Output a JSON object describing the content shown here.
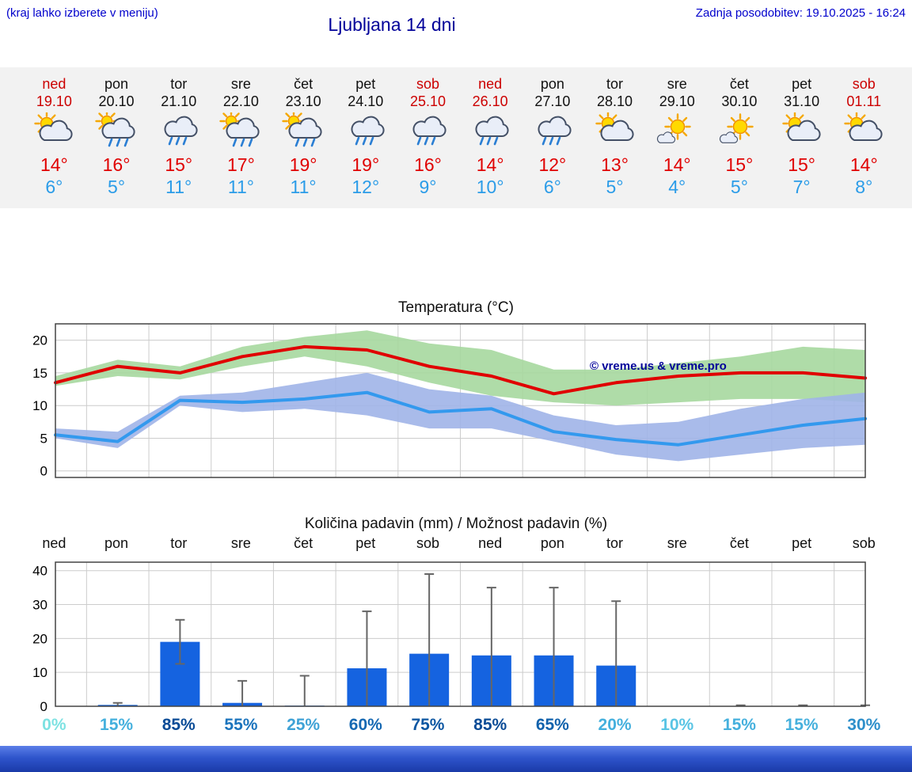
{
  "header": {
    "menu_hint": "(kraj lahko izberete v meniju)",
    "title": "Ljubljana 14 dni",
    "last_update": "Zadnja posodobitev: 19.10.2025 - 16:24"
  },
  "days": [
    {
      "name": "ned",
      "date": "19.10",
      "weekend": true,
      "icon": "partly-cloudy",
      "tmax": "14°",
      "tmin": "6°"
    },
    {
      "name": "pon",
      "date": "20.10",
      "weekend": false,
      "icon": "sun-showers",
      "tmax": "16°",
      "tmin": "5°"
    },
    {
      "name": "tor",
      "date": "21.10",
      "weekend": false,
      "icon": "rain",
      "tmax": "15°",
      "tmin": "11°"
    },
    {
      "name": "sre",
      "date": "22.10",
      "weekend": false,
      "icon": "sun-showers",
      "tmax": "17°",
      "tmin": "11°"
    },
    {
      "name": "čet",
      "date": "23.10",
      "weekend": false,
      "icon": "sun-showers",
      "tmax": "19°",
      "tmin": "11°"
    },
    {
      "name": "pet",
      "date": "24.10",
      "weekend": false,
      "icon": "rain",
      "tmax": "19°",
      "tmin": "12°"
    },
    {
      "name": "sob",
      "date": "25.10",
      "weekend": true,
      "icon": "rain",
      "tmax": "16°",
      "tmin": "9°"
    },
    {
      "name": "ned",
      "date": "26.10",
      "weekend": true,
      "icon": "rain",
      "tmax": "14°",
      "tmin": "10°"
    },
    {
      "name": "pon",
      "date": "27.10",
      "weekend": false,
      "icon": "rain",
      "tmax": "12°",
      "tmin": "6°"
    },
    {
      "name": "tor",
      "date": "28.10",
      "weekend": false,
      "icon": "partly-cloudy",
      "tmax": "13°",
      "tmin": "5°"
    },
    {
      "name": "sre",
      "date": "29.10",
      "weekend": false,
      "icon": "mostly-sunny",
      "tmax": "14°",
      "tmin": "4°"
    },
    {
      "name": "čet",
      "date": "30.10",
      "weekend": false,
      "icon": "mostly-sunny",
      "tmax": "15°",
      "tmin": "5°"
    },
    {
      "name": "pet",
      "date": "31.10",
      "weekend": false,
      "icon": "partly-cloudy",
      "tmax": "15°",
      "tmin": "7°"
    },
    {
      "name": "sob",
      "date": "01.11",
      "weekend": true,
      "icon": "partly-cloudy",
      "tmax": "14°",
      "tmin": "8°"
    }
  ],
  "chart_data": [
    {
      "type": "line",
      "title": "Temperatura (°C)",
      "categories": [
        "ned",
        "pon",
        "tor",
        "sre",
        "čet",
        "pet",
        "sob",
        "ned",
        "pon",
        "tor",
        "sre",
        "čet",
        "pet",
        "sob"
      ],
      "series": [
        {
          "name": "max-temperature",
          "color": "#e00000",
          "values": [
            13.5,
            16,
            15,
            17.5,
            19,
            18.5,
            16,
            14.5,
            11.8,
            13.5,
            14.5,
            15,
            15,
            14.2
          ]
        },
        {
          "name": "min-temperature",
          "color": "#3399ee",
          "values": [
            5.5,
            4.5,
            10.8,
            10.5,
            11,
            12,
            9,
            9.5,
            6,
            4.8,
            4,
            5.5,
            7,
            8
          ]
        }
      ],
      "bands": [
        {
          "name": "max-range",
          "color": "#a6d89e",
          "upper": [
            14.5,
            17,
            16,
            19,
            20.5,
            21.5,
            19.5,
            18.5,
            15.5,
            15.5,
            16.5,
            17.5,
            19,
            18.5
          ],
          "lower": [
            13,
            14.5,
            14,
            16,
            17.5,
            16,
            13.5,
            11.5,
            10.5,
            10,
            10.5,
            11,
            11,
            10.5
          ]
        },
        {
          "name": "min-range",
          "color": "#a0b4e8",
          "upper": [
            6.5,
            6,
            11.5,
            12,
            13.5,
            15,
            12.5,
            11.5,
            8.5,
            7,
            7.5,
            9.5,
            11,
            12
          ],
          "lower": [
            5,
            3.5,
            10,
            9,
            9.5,
            8.5,
            6.5,
            6.5,
            4.5,
            2.5,
            1.5,
            2.5,
            3.5,
            4
          ]
        }
      ],
      "ylim": [
        0,
        22
      ],
      "yticks": [
        0,
        5,
        10,
        15,
        20
      ],
      "grid": true,
      "watermark": "© vreme.us & vreme.pro"
    },
    {
      "type": "bar",
      "title": "Količina padavin (mm) / Možnost padavin (%)",
      "categories": [
        "ned",
        "pon",
        "tor",
        "sre",
        "čet",
        "pet",
        "sob",
        "ned",
        "pon",
        "tor",
        "sre",
        "čet",
        "pet",
        "sob"
      ],
      "values": [
        0,
        0.4,
        19,
        1,
        0.2,
        11.2,
        15.5,
        15,
        15,
        12,
        0,
        0.1,
        0.1,
        0.1
      ],
      "whisker_low": [
        0,
        0,
        12.5,
        0,
        0,
        0,
        0,
        0,
        0,
        0,
        0,
        0,
        0,
        0
      ],
      "whisker_high": [
        0,
        1,
        25.5,
        7.5,
        9,
        28,
        39,
        35,
        35,
        31,
        0,
        0.3,
        0.3,
        0.3
      ],
      "probabilities": [
        "0%",
        "15%",
        "85%",
        "55%",
        "25%",
        "60%",
        "75%",
        "85%",
        "65%",
        "20%",
        "10%",
        "15%",
        "15%",
        "30%"
      ],
      "ylim": [
        0,
        42
      ],
      "yticks": [
        0,
        10,
        20,
        30,
        40
      ],
      "grid": true,
      "bar_color": "#1563e0"
    }
  ],
  "colors": {
    "weekend_red": "#cc0000",
    "tmax_red": "#e00000",
    "tmin_blue": "#2b9ce8",
    "link_blue": "#0000cc",
    "title_blue": "#000099"
  }
}
